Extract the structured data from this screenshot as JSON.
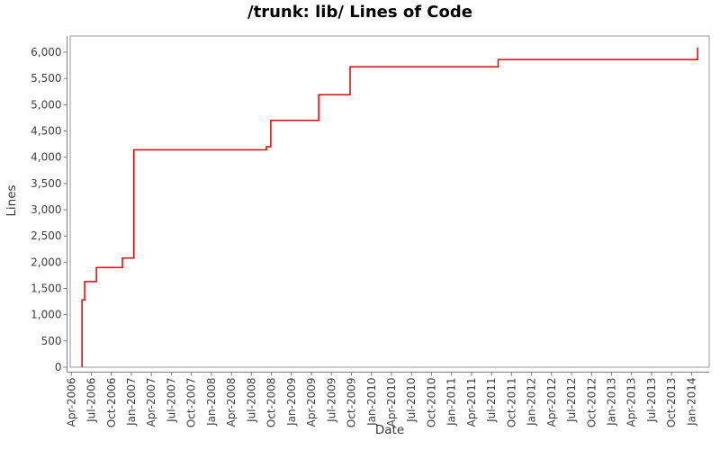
{
  "title": "/trunk: lib/ Lines of Code",
  "axes": {
    "x_title": "Date",
    "y_title": "Lines",
    "x_tick_labels": [
      "Apr-2006",
      "Jul-2006",
      "Oct-2006",
      "Jan-2007",
      "Apr-2007",
      "Jul-2007",
      "Oct-2007",
      "Jan-2008",
      "Apr-2008",
      "Jul-2008",
      "Oct-2008",
      "Jan-2009",
      "Apr-2009",
      "Jul-2009",
      "Oct-2009",
      "Jan-2010",
      "Apr-2010",
      "Jul-2010",
      "Oct-2010",
      "Jan-2011",
      "Apr-2011",
      "Jul-2011",
      "Oct-2011",
      "Jan-2012",
      "Apr-2012",
      "Jul-2012",
      "Oct-2012",
      "Jan-2013",
      "Apr-2013",
      "Jul-2013",
      "Oct-2013",
      "Jan-2014"
    ],
    "y_tick_labels": [
      "0",
      "500",
      "1,000",
      "1,500",
      "2,000",
      "2,500",
      "3,000",
      "3,500",
      "4,000",
      "4,500",
      "5,000",
      "5,500",
      "6,000"
    ]
  },
  "colors": {
    "series": "#e60000",
    "axis": "#808080",
    "plot_outline": "#9a9a9a",
    "tick_label": "#3f3f3f",
    "title_text": "#000000",
    "background": "#ffffff"
  },
  "chart_data": {
    "type": "line",
    "style": "step",
    "title": "/trunk: lib/ Lines of Code",
    "xlabel": "Date",
    "ylabel": "Lines",
    "x_range": {
      "start": "Apr-2006",
      "end": "Jan-2014",
      "tick_interval": "3 months"
    },
    "ylim": [
      0,
      6000
    ],
    "y_tick_step": 500,
    "grid": false,
    "legend": false,
    "series_name": "/trunk: lib/ lines of code",
    "start_point": {
      "date": "May-2006",
      "q": 0.53,
      "lines": 0
    },
    "steps": [
      {
        "date": "May-2006",
        "q": 0.53,
        "lines": 1280
      },
      {
        "date": "Jun-2006",
        "q": 0.66,
        "lines": 1630
      },
      {
        "date": "Aug-2006",
        "q": 1.25,
        "lines": 1900
      },
      {
        "date": "Dec-2006",
        "q": 2.55,
        "lines": 2080
      },
      {
        "date": "Jan-2007",
        "q": 3.12,
        "lines": 4140
      },
      {
        "date": "Sep-2008",
        "q": 9.75,
        "lines": 4200
      },
      {
        "date": "Oct-2008",
        "q": 9.97,
        "lines": 4700
      },
      {
        "date": "May-2009",
        "q": 12.36,
        "lines": 5190
      },
      {
        "date": "Jul-2009",
        "q": 13.93,
        "lines": 5720
      },
      {
        "date": "Aug-2011",
        "q": 21.33,
        "lines": 5860
      },
      {
        "date": "Jan-2014",
        "q": 31.3,
        "lines": 6090
      }
    ]
  }
}
